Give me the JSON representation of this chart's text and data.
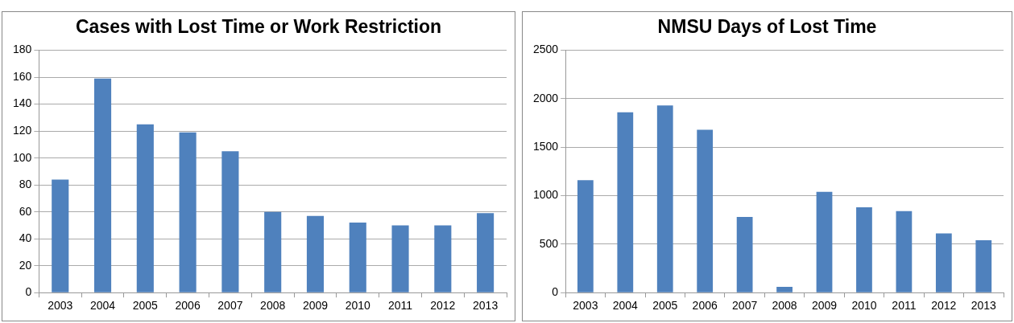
{
  "chart_data": [
    {
      "type": "bar",
      "title": "Cases with Lost Time or Work Restriction",
      "categories": [
        "2003",
        "2004",
        "2005",
        "2006",
        "2007",
        "2008",
        "2009",
        "2010",
        "2011",
        "2012",
        "2013"
      ],
      "values": [
        84,
        159,
        125,
        119,
        105,
        60,
        57,
        52,
        50,
        50,
        59
      ],
      "color": "#4f81bd",
      "ylim": [
        0,
        180
      ],
      "yticks": [
        0,
        20,
        40,
        60,
        80,
        100,
        120,
        140,
        160,
        180
      ],
      "grid": "y",
      "legend": false
    },
    {
      "type": "bar",
      "title": "NMSU Days of Lost Time",
      "categories": [
        "2003",
        "2004",
        "2005",
        "2006",
        "2007",
        "2008",
        "2009",
        "2010",
        "2011",
        "2012",
        "2013"
      ],
      "values": [
        1160,
        1860,
        1930,
        1680,
        780,
        60,
        1040,
        880,
        840,
        610,
        540
      ],
      "color": "#4f81bd",
      "ylim": [
        0,
        2500
      ],
      "yticks": [
        0,
        500,
        1000,
        1500,
        2000,
        2500
      ],
      "grid": "y",
      "legend": false
    }
  ]
}
